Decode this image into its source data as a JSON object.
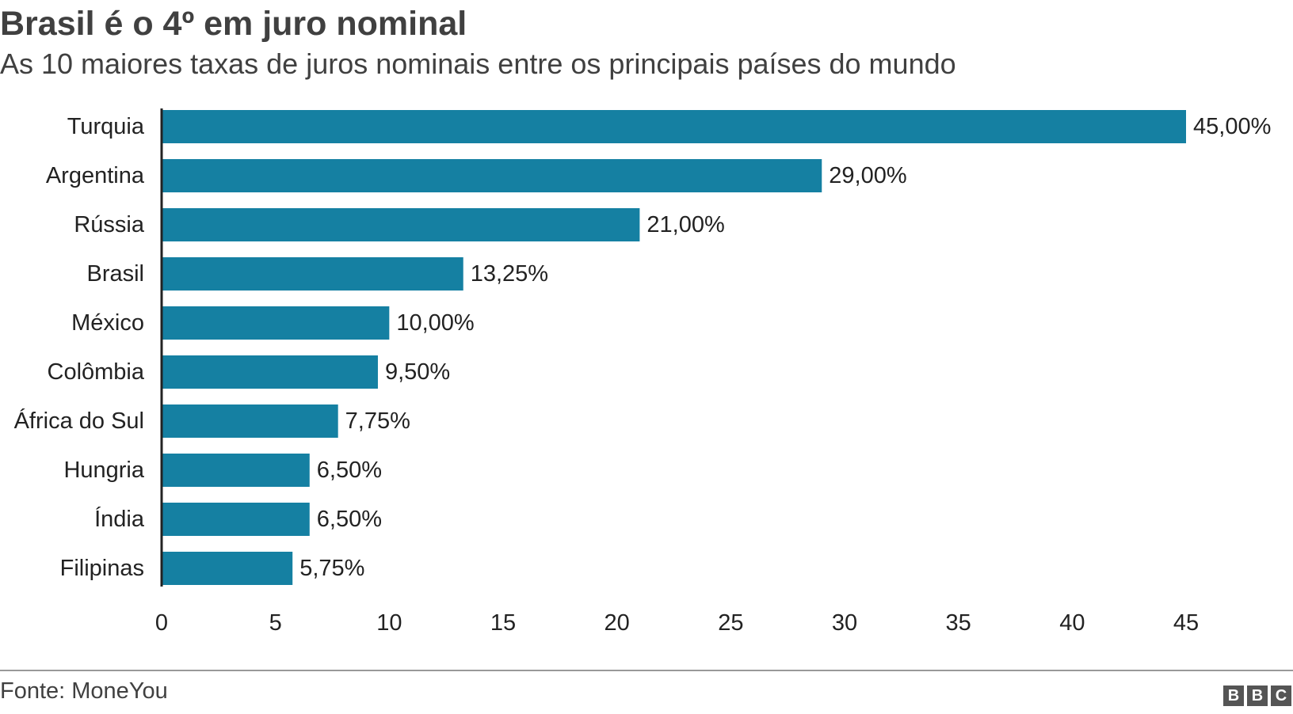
{
  "title": "Brasil é o 4º em juro nominal",
  "subtitle": "As 10 maiores taxas de juros nominais entre os principais países do mundo",
  "source": "Fonte: MoneYou",
  "logo": [
    "B",
    "B",
    "C"
  ],
  "colors": {
    "bar": "#1580a2",
    "axis": "#222222",
    "text": "#222222",
    "heading": "#404040"
  },
  "chart_data": {
    "type": "bar",
    "orientation": "horizontal",
    "title": "Brasil é o 4º em juro nominal",
    "subtitle": "As 10 maiores taxas de juros nominais entre os principais países do mundo",
    "categories": [
      "Turquia",
      "Argentina",
      "Rússia",
      "Brasil",
      "México",
      "Colômbia",
      "África do Sul",
      "Hungria",
      "Índia",
      "Filipinas"
    ],
    "values": [
      45.0,
      29.0,
      21.0,
      13.25,
      10.0,
      9.5,
      7.75,
      6.5,
      6.5,
      5.75
    ],
    "value_labels": [
      "45,00%",
      "29,00%",
      "21,00%",
      "13,25%",
      "10,00%",
      "9,50%",
      "7,75%",
      "6,50%",
      "6,50%",
      "5,75%"
    ],
    "xlim": [
      0,
      45
    ],
    "xticks": [
      0,
      5,
      10,
      15,
      20,
      25,
      30,
      35,
      40,
      45
    ],
    "grid": false,
    "legend": "none"
  }
}
